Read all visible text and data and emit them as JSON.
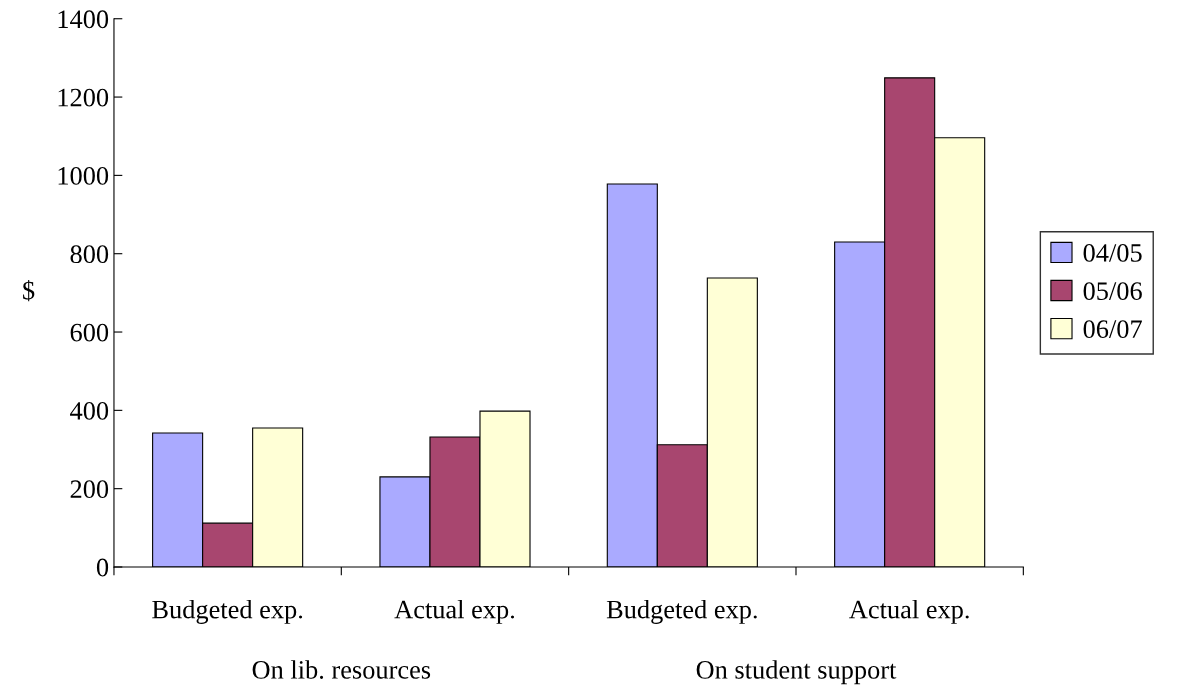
{
  "chart_data": {
    "type": "bar",
    "ylabel": "$",
    "categories": [
      "Budgeted exp.",
      "Actual exp.",
      "Budgeted exp.",
      "Actual exp."
    ],
    "series": [
      {
        "name": "04/05",
        "color": "#aaaaff",
        "values": [
          342,
          230,
          978,
          830
        ]
      },
      {
        "name": "05/06",
        "color": "#a8466f",
        "values": [
          112,
          332,
          312,
          1249
        ]
      },
      {
        "name": "06/07",
        "color": "#ffffd6",
        "values": [
          355,
          398,
          738,
          1096
        ]
      }
    ],
    "ylim": [
      0,
      1400
    ],
    "yticks": [
      0,
      200,
      400,
      600,
      800,
      1000,
      1200,
      1400
    ],
    "annotations": [
      "On lib. resources",
      "On student support"
    ],
    "grid": false,
    "legend": "right"
  }
}
